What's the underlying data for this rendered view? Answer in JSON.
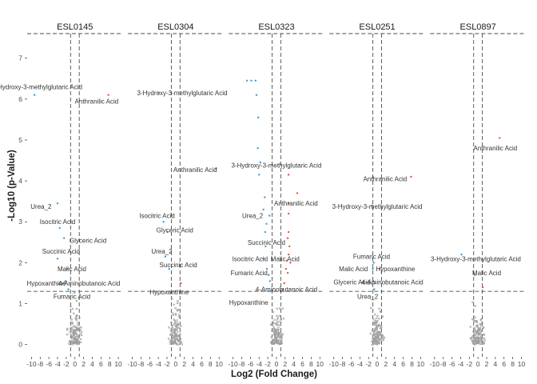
{
  "chart_data": {
    "type": "scatter",
    "xlabel": "Log2 (Fold Change)",
    "ylabel": "-Log10 (p-Value)",
    "xlim": [
      -11,
      11
    ],
    "ylim": [
      -0.3,
      7.6
    ],
    "x_ticks": [
      -10,
      -8,
      -6,
      -4,
      -2,
      0,
      2,
      4,
      6,
      8,
      10
    ],
    "x_tick_labels": [
      "-10",
      "-8",
      "-6",
      "-4",
      "-2",
      "0",
      "2",
      "4",
      "6",
      "8",
      "10"
    ],
    "y_ticks": [
      0,
      1,
      2,
      3,
      4,
      5,
      6,
      7
    ],
    "y_tick_labels": [
      "0",
      "1",
      "2",
      "3",
      "4",
      "5",
      "6",
      "7"
    ],
    "threshold_y": 1.3,
    "threshold_x": [
      -1,
      1
    ],
    "grid": false,
    "colors": {
      "up": "#e8553a",
      "down": "#3a9de0",
      "ns": "#9e9e9e"
    },
    "panels": [
      {
        "name": "ESL0145",
        "points": [
          {
            "x": -9.3,
            "y": 6.1,
            "label": "3-Hydroxy-3-methylglutaric Acid",
            "dir": "down",
            "lx": -8.7,
            "ly": 6.3
          },
          {
            "x": 7.7,
            "y": 6.1,
            "label": "Anthranilic Acid",
            "dir": "up",
            "lx": 5.0,
            "ly": 5.95
          },
          {
            "x": -4.0,
            "y": 3.45,
            "label": "Urea_2",
            "dir": "down",
            "lx": -7.8,
            "ly": 3.38
          },
          {
            "x": -3.5,
            "y": 2.85,
            "label": "Isocitric Acid",
            "dir": "down",
            "lx": -4.0,
            "ly": 3.0
          },
          {
            "x": -2.5,
            "y": 2.6,
            "label": "Glyceric Acid",
            "dir": "down",
            "lx": 3.0,
            "ly": 2.55
          },
          {
            "x": -4.0,
            "y": 2.1,
            "label": "Succinic Acid",
            "dir": "down",
            "lx": -3.2,
            "ly": 2.28
          },
          {
            "x": -1.8,
            "y": 1.85,
            "label": "Malic Acid",
            "dir": "down",
            "lx": -0.7,
            "ly": 1.85
          },
          {
            "x": -2.2,
            "y": 1.55,
            "label": "Hypoxanthine",
            "dir": "down",
            "lx": -6.6,
            "ly": 1.5
          },
          {
            "x": -2.7,
            "y": 1.5,
            "label": "4-Aminobutanoic Acid",
            "dir": "down",
            "lx": 3.3,
            "ly": 1.5
          },
          {
            "x": -1.5,
            "y": 1.35,
            "label": "Fumaric Acid",
            "dir": "down",
            "lx": -0.7,
            "ly": 1.18
          }
        ]
      },
      {
        "name": "ESL0304",
        "points": [
          {
            "x": -3.9,
            "y": 6.15,
            "label": "3-Hydroxy-3-methylglutaric Acid",
            "dir": "down",
            "lx": 1.5,
            "ly": 6.15
          },
          {
            "x": 9.3,
            "y": 4.3,
            "label": "Anthranilic Acid",
            "dir": "up",
            "lx": 4.5,
            "ly": 4.28
          },
          {
            "x": -2.8,
            "y": 3.0,
            "label": "Isocitric Acid",
            "dir": "down",
            "lx": -4.3,
            "ly": 3.15
          },
          {
            "x": -1.9,
            "y": 2.75,
            "label": "Glyceric Acid",
            "dir": "down",
            "lx": -0.2,
            "ly": 2.8
          },
          {
            "x": -2.4,
            "y": 2.15,
            "label": "Urea_2",
            "dir": "down",
            "lx": -3.2,
            "ly": 2.28
          },
          {
            "x": -1.5,
            "y": 1.85,
            "label": "Succinic Acid",
            "dir": "down",
            "lx": 0.6,
            "ly": 1.95
          },
          {
            "x": 1.2,
            "y": 1.5,
            "label": "Hypoxanthine",
            "dir": "up",
            "lx": -1.5,
            "ly": 1.28
          }
        ]
      },
      {
        "name": "ESL0323",
        "points": [
          {
            "x": -6.8,
            "y": 6.45,
            "label": "",
            "dir": "down"
          },
          {
            "x": -5.8,
            "y": 6.45,
            "label": "",
            "dir": "down"
          },
          {
            "x": -4.8,
            "y": 6.45,
            "label": "",
            "dir": "down"
          },
          {
            "x": -4.6,
            "y": 6.1,
            "label": "",
            "dir": "down"
          },
          {
            "x": -4.2,
            "y": 5.55,
            "label": "",
            "dir": "down"
          },
          {
            "x": -4.3,
            "y": 4.8,
            "label": "",
            "dir": "down"
          },
          {
            "x": -3.7,
            "y": 4.45,
            "label": "",
            "dir": "down"
          },
          {
            "x": -4.0,
            "y": 4.15,
            "label": "3-Hydroxy-3-methylglutaric Acid",
            "dir": "down",
            "lx": 0.0,
            "ly": 4.38
          },
          {
            "x": 2.8,
            "y": 4.15,
            "label": "",
            "dir": "up"
          },
          {
            "x": 4.8,
            "y": 3.7,
            "label": "",
            "dir": "up"
          },
          {
            "x": 2.8,
            "y": 3.45,
            "label": "Anthranilic Acid",
            "dir": "up",
            "lx": 4.5,
            "ly": 3.45
          },
          {
            "x": -2.7,
            "y": 3.6,
            "label": "",
            "dir": "down"
          },
          {
            "x": -3.0,
            "y": 3.3,
            "label": "",
            "dir": "down"
          },
          {
            "x": -1.6,
            "y": 3.15,
            "label": "Urea_2",
            "dir": "down",
            "lx": -5.5,
            "ly": 3.15
          },
          {
            "x": 2.8,
            "y": 3.2,
            "label": "",
            "dir": "up"
          },
          {
            "x": -2.3,
            "y": 2.95,
            "label": "",
            "dir": "down"
          },
          {
            "x": -2.6,
            "y": 2.75,
            "label": "",
            "dir": "down"
          },
          {
            "x": 2.8,
            "y": 2.75,
            "label": "",
            "dir": "up"
          },
          {
            "x": 2.6,
            "y": 2.6,
            "label": "Succinic Acid",
            "dir": "up",
            "lx": -2.3,
            "ly": 2.5
          },
          {
            "x": -2.5,
            "y": 2.4,
            "label": "",
            "dir": "down"
          },
          {
            "x": 3.0,
            "y": 2.4,
            "label": "",
            "dir": "up"
          },
          {
            "x": 2.8,
            "y": 2.2,
            "label": "",
            "dir": "up"
          },
          {
            "x": -3.0,
            "y": 2.1,
            "label": "Isocitric Acid",
            "dir": "down",
            "lx": -6.1,
            "ly": 2.1
          },
          {
            "x": 2.4,
            "y": 2.05,
            "label": "Malic Acid",
            "dir": "up",
            "lx": 2.0,
            "ly": 2.1
          },
          {
            "x": 3.2,
            "y": 2.0,
            "label": "",
            "dir": "up"
          },
          {
            "x": -2.2,
            "y": 1.85,
            "label": "",
            "dir": "down"
          },
          {
            "x": 2.2,
            "y": 1.85,
            "label": "",
            "dir": "up"
          },
          {
            "x": 2.6,
            "y": 1.75,
            "label": "",
            "dir": "up"
          },
          {
            "x": -1.8,
            "y": 1.7,
            "label": "Fumaric Acid",
            "dir": "down",
            "lx": -6.3,
            "ly": 1.75
          },
          {
            "x": -1.5,
            "y": 1.55,
            "label": "",
            "dir": "down"
          },
          {
            "x": 1.8,
            "y": 1.5,
            "label": "",
            "dir": "up"
          },
          {
            "x": 1.5,
            "y": 1.35,
            "label": "4-Aminobutanoic Acid",
            "dir": "up",
            "lx": 2.3,
            "ly": 1.35
          },
          {
            "x": -1.5,
            "y": 1.3,
            "label": "Hypoxanthine",
            "dir": "down",
            "lx": -6.4,
            "ly": 1.03
          }
        ]
      },
      {
        "name": "ESL0251",
        "points": [
          {
            "x": 7.8,
            "y": 4.1,
            "label": "Anthranilic Acid",
            "dir": "up",
            "lx": 1.8,
            "ly": 4.05
          },
          {
            "x": -1.2,
            "y": 3.4,
            "label": "3-Hydroxy-3-methylglutaric Acid",
            "dir": "down",
            "lx": 0.0,
            "ly": 3.38
          },
          {
            "x": -0.8,
            "y": 2.0,
            "label": "Fumaric Acid",
            "dir": "down",
            "lx": -1.3,
            "ly": 2.15
          },
          {
            "x": -1.0,
            "y": 1.85,
            "label": "Malic Acid",
            "dir": "down",
            "lx": -5.5,
            "ly": 1.85
          },
          {
            "x": 0.5,
            "y": 1.85,
            "label": "Hypoxanthine",
            "dir": "up",
            "lx": 4.2,
            "ly": 1.85
          },
          {
            "x": -0.9,
            "y": 1.55,
            "label": "Glyceric Acid",
            "dir": "down",
            "lx": -5.8,
            "ly": 1.53
          },
          {
            "x": -0.6,
            "y": 1.5,
            "label": "4-Aminobutanoic Acid",
            "dir": "down",
            "lx": 3.5,
            "ly": 1.53
          },
          {
            "x": -0.7,
            "y": 1.35,
            "label": "Urea_2",
            "dir": "down",
            "lx": -2.2,
            "ly": 1.18
          }
        ]
      },
      {
        "name": "ESL0897",
        "points": [
          {
            "x": 5.0,
            "y": 5.05,
            "label": "Anthranilic Acid",
            "dir": "up",
            "lx": 4.0,
            "ly": 4.8
          },
          {
            "x": -3.8,
            "y": 2.2,
            "label": "3-Hydroxy-3-methylglutaric Acid",
            "dir": "down",
            "lx": -0.5,
            "ly": 2.1
          },
          {
            "x": -0.7,
            "y": 1.7,
            "label": "Malic Acid",
            "dir": "down",
            "lx": 2.0,
            "ly": 1.75
          },
          {
            "x": 1.1,
            "y": 1.4,
            "label": "",
            "dir": "up"
          }
        ]
      }
    ]
  }
}
